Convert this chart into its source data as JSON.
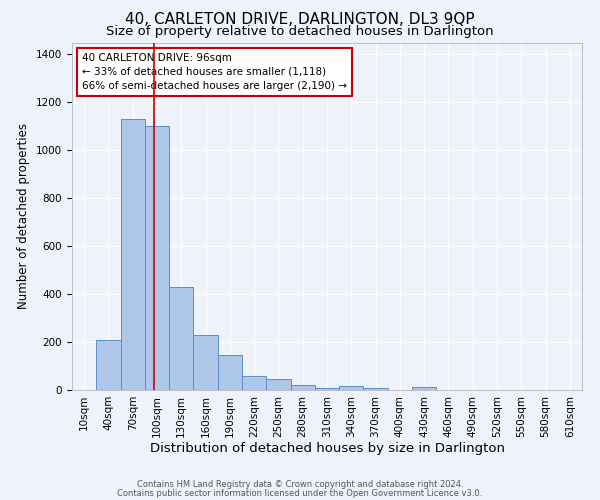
{
  "title": "40, CARLETON DRIVE, DARLINGTON, DL3 9QP",
  "subtitle": "Size of property relative to detached houses in Darlington",
  "xlabel": "Distribution of detached houses by size in Darlington",
  "ylabel": "Number of detached properties",
  "bar_values": [
    0,
    210,
    1130,
    1100,
    430,
    230,
    145,
    58,
    45,
    22,
    10,
    15,
    10,
    0,
    12,
    0,
    0,
    0,
    0,
    0,
    0
  ],
  "bar_labels": [
    "10sqm",
    "40sqm",
    "70sqm",
    "100sqm",
    "130sqm",
    "160sqm",
    "190sqm",
    "220sqm",
    "250sqm",
    "280sqm",
    "310sqm",
    "340sqm",
    "370sqm",
    "400sqm",
    "430sqm",
    "460sqm",
    "490sqm",
    "520sqm",
    "550sqm",
    "580sqm",
    "610sqm"
  ],
  "bar_color": "#aec6e8",
  "bar_edge_color": "#5b8fc9",
  "background_color": "#eef2fb",
  "grid_color": "#ffffff",
  "annotation_text": "40 CARLETON DRIVE: 96sqm\n← 33% of detached houses are smaller (1,118)\n66% of semi-detached houses are larger (2,190) →",
  "annotation_box_color": "#ffffff",
  "annotation_box_edge_color": "#cc0000",
  "property_line_color": "#cc0000",
  "ylim": [
    0,
    1450
  ],
  "yticks": [
    0,
    200,
    400,
    600,
    800,
    1000,
    1200,
    1400
  ],
  "footnote1": "Contains HM Land Registry data © Crown copyright and database right 2024.",
  "footnote2": "Contains public sector information licensed under the Open Government Licence v3.0.",
  "title_fontsize": 11,
  "subtitle_fontsize": 9.5,
  "xlabel_fontsize": 9.5,
  "ylabel_fontsize": 8.5,
  "tick_fontsize": 7.5,
  "annotation_fontsize": 7.5,
  "footnote_fontsize": 6
}
